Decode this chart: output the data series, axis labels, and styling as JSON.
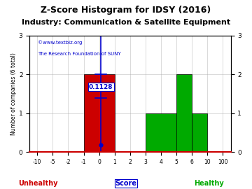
{
  "title": "Z-Score Histogram for IDSY (2016)",
  "subtitle": "Industry: Communication & Satellite Equipment",
  "watermark1": "©www.textbiz.org",
  "watermark2": "The Research Foundation of SUNY",
  "tick_positions": [
    0,
    1,
    2,
    3,
    4,
    5,
    6,
    7,
    8,
    9,
    10,
    11,
    12
  ],
  "tick_labels": [
    "-10",
    "-5",
    "-2",
    "-1",
    "0",
    "1",
    "2",
    "3",
    "4",
    "5",
    "6",
    "10",
    "100"
  ],
  "bars": [
    {
      "x_start_idx": 3,
      "x_end_idx": 5,
      "height": 2,
      "color": "#cc0000"
    },
    {
      "x_start_idx": 7,
      "x_end_idx": 10,
      "height": 1,
      "color": "#00aa00"
    },
    {
      "x_start_idx": 9,
      "x_end_idx": 10,
      "height": 2,
      "color": "#00aa00"
    },
    {
      "x_start_idx": 10,
      "x_end_idx": 11,
      "height": 1,
      "color": "#00aa00"
    }
  ],
  "zscore_idx": 4.1128,
  "zscore_value": "0.1128",
  "zscore_line_color": "#0000cc",
  "zscore_box_color": "#ffffff",
  "zscore_text_color": "#0000cc",
  "xlim": [
    -0.5,
    12.5
  ],
  "ylim": [
    0,
    3
  ],
  "y_ticks": [
    0,
    1,
    2,
    3
  ],
  "ylabel": "Number of companies (6 total)",
  "xlabel": "Score",
  "unhealthy_label": "Unhealthy",
  "healthy_label": "Healthy",
  "unhealthy_color": "#cc0000",
  "healthy_color": "#00aa00",
  "xlabel_color": "#0000cc",
  "title_fontsize": 9,
  "subtitle_fontsize": 8,
  "axis_bg_color": "#ffffff",
  "fig_bg_color": "#ffffff",
  "grid_color": "#aaaaaa",
  "spine_bottom_color": "#cc0000",
  "watermark1_color": "#0000cc",
  "watermark2_color": "#0000cc"
}
